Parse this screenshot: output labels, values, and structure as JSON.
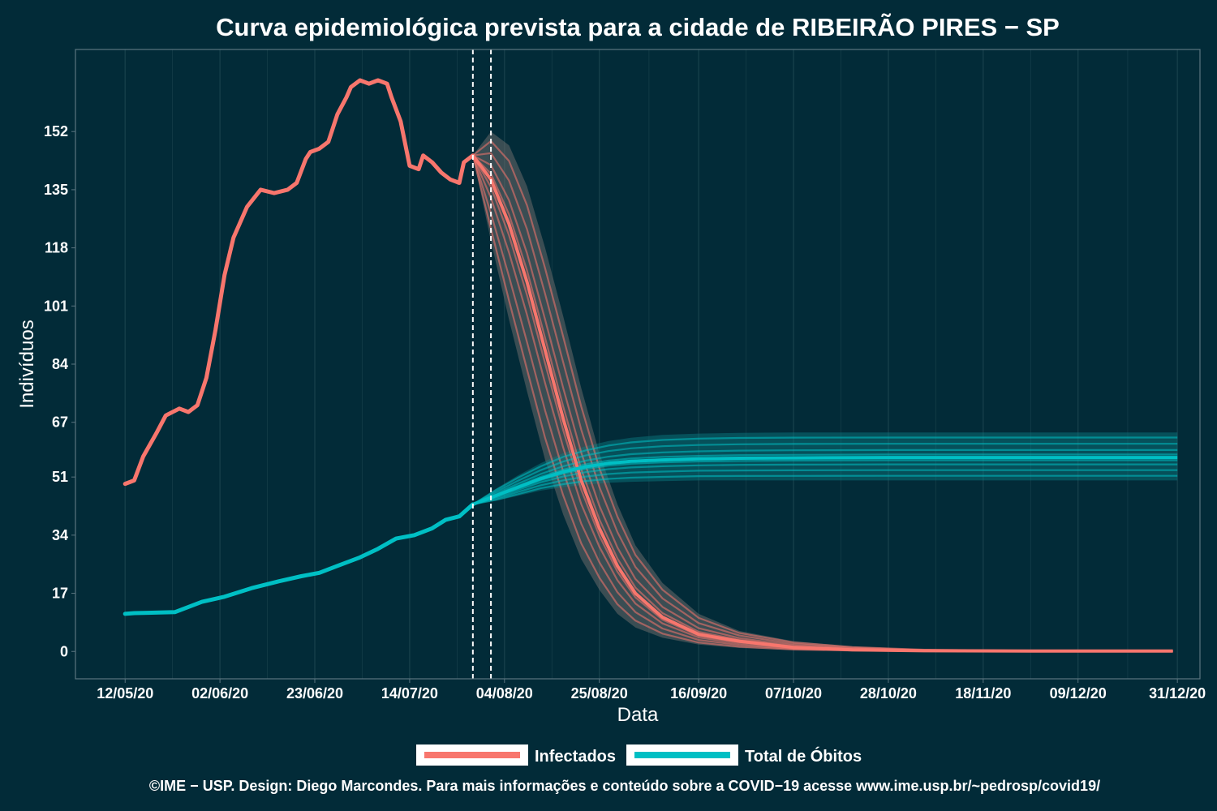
{
  "chart_data": {
    "type": "line",
    "title": "Curva epidemiológica prevista para a cidade de RIBEIRÃO PIRES − SP",
    "xlabel": "Data",
    "ylabel": "Indivíduos",
    "x_ticks": [
      "12/05/20",
      "02/06/20",
      "23/06/20",
      "14/07/20",
      "04/08/20",
      "25/08/20",
      "16/09/20",
      "07/10/20",
      "28/10/20",
      "18/11/20",
      "09/12/20",
      "31/12/20"
    ],
    "x_tick_dates": [
      "2020-05-12",
      "2020-06-02",
      "2020-06-23",
      "2020-07-14",
      "2020-08-04",
      "2020-08-25",
      "2020-09-16",
      "2020-10-07",
      "2020-10-28",
      "2020-11-18",
      "2020-12-09",
      "2020-12-31"
    ],
    "y_ticks": [
      0,
      17,
      34,
      51,
      67,
      84,
      101,
      118,
      135,
      152
    ],
    "xlim": [
      "2020-05-01",
      "2021-01-05"
    ],
    "ylim": [
      -8,
      176
    ],
    "vlines": [
      "2020-07-28",
      "2020-08-01"
    ],
    "legend_position": "bottom",
    "grid": true,
    "colors": {
      "background": "#022b38",
      "grid": "#17404b",
      "infected": "#f8766d",
      "deaths": "#00bfc4",
      "band": "#6a6a6a",
      "deaths_band": "#0b7f86"
    },
    "series": [
      {
        "name": "Infectados",
        "kind": "observed",
        "x": [
          "2020-05-12",
          "2020-05-14",
          "2020-05-16",
          "2020-05-19",
          "2020-05-21",
          "2020-05-24",
          "2020-05-26",
          "2020-05-28",
          "2020-05-30",
          "2020-06-01",
          "2020-06-03",
          "2020-06-05",
          "2020-06-08",
          "2020-06-11",
          "2020-06-14",
          "2020-06-17",
          "2020-06-19",
          "2020-06-21",
          "2020-06-22",
          "2020-06-24",
          "2020-06-26",
          "2020-06-28",
          "2020-06-30",
          "2020-07-01",
          "2020-07-03",
          "2020-07-05",
          "2020-07-07",
          "2020-07-09",
          "2020-07-10",
          "2020-07-12",
          "2020-07-14",
          "2020-07-16",
          "2020-07-17",
          "2020-07-19",
          "2020-07-21",
          "2020-07-23",
          "2020-07-25",
          "2020-07-26",
          "2020-07-28"
        ],
        "values": [
          49,
          50,
          57,
          64,
          69,
          71,
          70,
          72,
          80,
          94,
          110,
          121,
          130,
          135,
          134,
          135,
          137,
          144,
          146,
          147,
          149,
          157,
          162,
          165,
          167,
          166,
          167,
          166,
          162,
          155,
          142,
          141,
          145,
          143,
          140,
          138,
          137,
          143,
          145
        ]
      },
      {
        "name": "Infectados",
        "kind": "projection",
        "x": [
          "2020-07-28",
          "2020-08-01",
          "2020-08-05",
          "2020-08-09",
          "2020-08-13",
          "2020-08-17",
          "2020-08-21",
          "2020-08-25",
          "2020-08-29",
          "2020-09-02",
          "2020-09-08",
          "2020-09-16",
          "2020-09-25",
          "2020-10-07",
          "2020-10-20",
          "2020-11-05",
          "2020-12-01",
          "2020-12-30"
        ],
        "values": [
          145,
          138,
          125,
          108,
          88,
          68,
          50,
          36,
          25,
          17,
          10,
          5,
          3,
          1.2,
          0.5,
          0.2,
          0.1,
          0.1
        ],
        "band_lower": [
          145,
          120,
          97,
          76,
          56,
          40,
          27,
          18,
          11,
          7,
          4,
          2,
          1,
          0.4,
          0.2,
          0.1,
          0,
          0
        ],
        "band_upper": [
          145,
          152,
          148,
          136,
          118,
          98,
          77,
          58,
          43,
          31,
          20,
          11,
          6,
          3,
          1.5,
          0.6,
          0.2,
          0.1
        ]
      },
      {
        "name": "Total de Óbitos",
        "kind": "observed",
        "x": [
          "2020-05-12",
          "2020-05-14",
          "2020-05-17",
          "2020-05-23",
          "2020-05-29",
          "2020-06-03",
          "2020-06-09",
          "2020-06-15",
          "2020-06-20",
          "2020-06-24",
          "2020-06-28",
          "2020-07-03",
          "2020-07-07",
          "2020-07-11",
          "2020-07-15",
          "2020-07-19",
          "2020-07-22",
          "2020-07-25",
          "2020-07-28"
        ],
        "values": [
          11,
          11.2,
          11.3,
          11.5,
          14.5,
          16,
          18.5,
          20.5,
          22,
          23,
          25,
          27.5,
          30,
          33,
          34,
          36,
          38.5,
          39.5,
          43
        ]
      },
      {
        "name": "Total de Óbitos",
        "kind": "projection",
        "x": [
          "2020-07-28",
          "2020-08-02",
          "2020-08-07",
          "2020-08-12",
          "2020-08-17",
          "2020-08-22",
          "2020-08-27",
          "2020-09-01",
          "2020-09-08",
          "2020-09-16",
          "2020-09-25",
          "2020-10-07",
          "2020-10-28",
          "2020-11-18",
          "2020-12-09",
          "2020-12-31"
        ],
        "values": [
          43,
          45.5,
          48,
          50.5,
          52.5,
          54,
          55,
          55.6,
          56,
          56.3,
          56.5,
          56.6,
          56.7,
          56.7,
          56.7,
          56.7
        ],
        "band_lower": [
          43,
          44,
          45.5,
          47,
          48,
          48.8,
          49.3,
          49.6,
          49.8,
          50,
          50,
          50,
          50,
          50,
          50,
          50
        ],
        "band_upper": [
          43,
          47.5,
          51.5,
          55,
          58,
          60,
          61.5,
          62.5,
          63.3,
          63.7,
          63.9,
          64,
          64,
          64,
          64,
          64
        ]
      }
    ]
  },
  "legend": [
    {
      "label": "Infectados",
      "color": "#f8766d"
    },
    {
      "label": "Total de Óbitos",
      "color": "#00bfc4"
    }
  ],
  "footer": {
    "credit": "©IME − USP. Design: Diego Marcondes. Para mais informações e conteúdo sobre a COVID−19 acesse www.ime.usp.br/~pedrosp/covid19/"
  }
}
